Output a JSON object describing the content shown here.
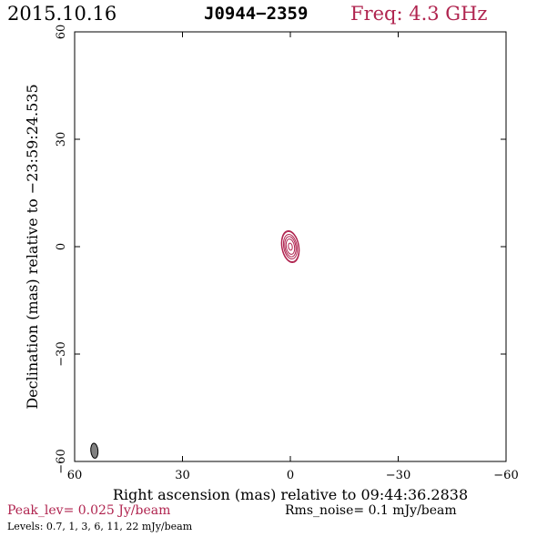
{
  "header": {
    "date": "2015.10.16",
    "source": "J0944−2359",
    "frequency": "Freq: 4.3 GHz"
  },
  "footer": {
    "peak": "Peak_lev=  0.025 Jy/beam",
    "rms": "Rms_noise=   0.1 mJy/beam",
    "levels": "Levels: 0.7,    1,    3,    6,   11,   22 mJy/beam"
  },
  "colors": {
    "contour": "#b0244f",
    "beam": "#808080",
    "frame": "#000000",
    "highlight_text": "#b0244f"
  },
  "chart_data": {
    "type": "contour",
    "xlabel": "Right ascension (mas) relative to 09:44:36.2838",
    "ylabel": "Declination (mas) relative to −23:59:24.535",
    "xlim": [
      60,
      -60
    ],
    "ylim": [
      -60,
      60
    ],
    "x_ticks": [
      60,
      30,
      0,
      -30,
      -60
    ],
    "y_ticks": [
      -60,
      -30,
      0,
      30,
      60
    ],
    "x_tick_labels": [
      "60",
      "30",
      "0",
      "−30",
      "−60"
    ],
    "y_tick_labels": [
      "−60",
      "−30",
      "0",
      "30",
      "60"
    ],
    "contour_levels_mJy": [
      0.7,
      1,
      3,
      6,
      11,
      22
    ],
    "peak_Jy_per_beam": 0.025,
    "rms_mJy_per_beam": 0.1,
    "source_component": {
      "ra_mas": 0,
      "dec_mas": 0,
      "major_mas": 4.5,
      "minor_mas": 2.4,
      "pa_deg": 10
    },
    "beam": {
      "ra_mas": 54.5,
      "dec_mas": -57,
      "major_mas": 2.1,
      "minor_mas": 1.0,
      "pa_deg": 5
    },
    "grid": false
  }
}
